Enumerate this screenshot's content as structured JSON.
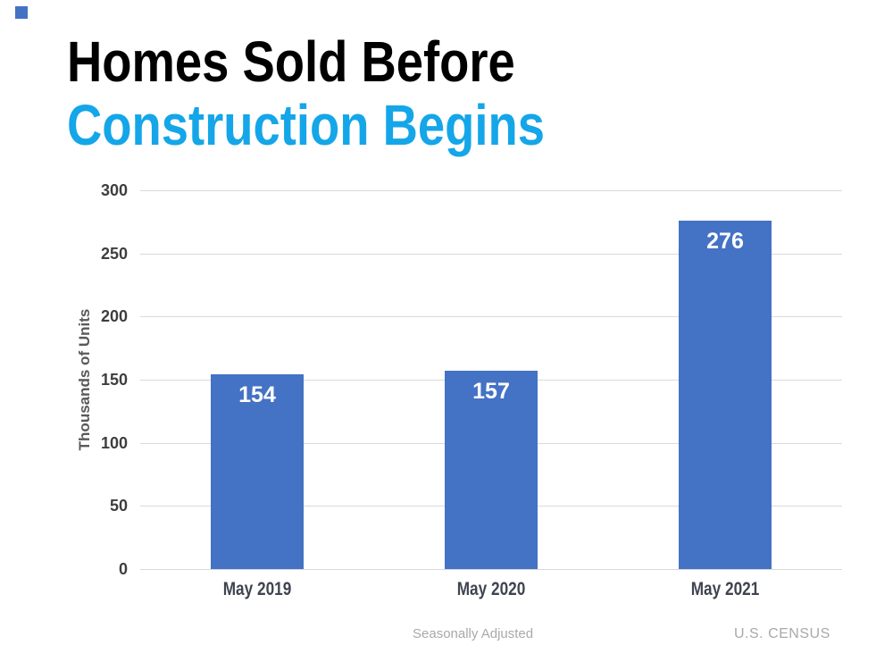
{
  "slide": {
    "title_line1": "Homes Sold Before",
    "title_line2": "Construction Begins",
    "title_accent_color": "#14A6E8",
    "corner_accent_color": "#4472C4",
    "note": "Seasonally Adjusted",
    "source": "U.S. CENSUS"
  },
  "chart_data": {
    "type": "bar",
    "categories": [
      "May 2019",
      "May 2020",
      "May 2021"
    ],
    "values": [
      154,
      157,
      276
    ],
    "title": "Homes Sold Before Construction Begins",
    "xlabel": "",
    "ylabel": "Thousands of Units",
    "ylim": [
      0,
      300
    ],
    "yticks": [
      0,
      50,
      100,
      150,
      200,
      250,
      300
    ],
    "grid": true,
    "legend": false,
    "bar_color": "#4472C4",
    "value_label_color": "#FFFFFF",
    "gridline_color": "#D9D9D9"
  }
}
